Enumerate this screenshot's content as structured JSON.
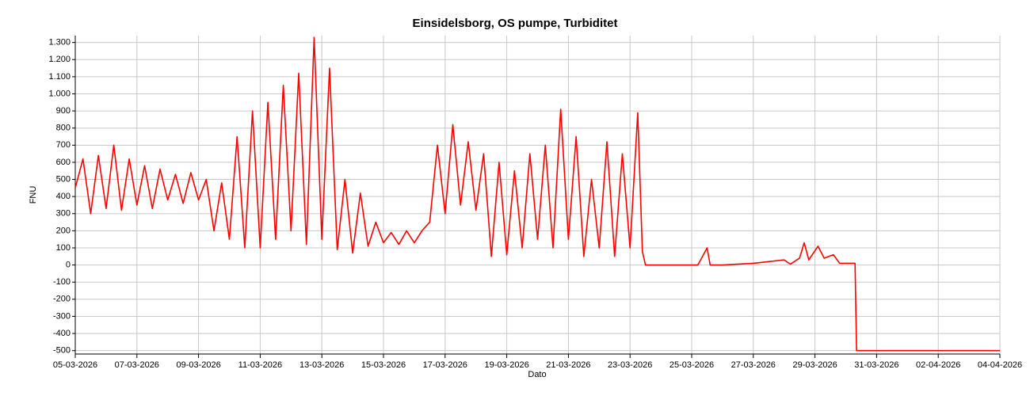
{
  "chart_data": {
    "type": "line",
    "title": "Einsidelsborg, OS pumpe, Turbiditet",
    "x_label": "Dato",
    "y_label": "FNU",
    "color": "#ff0000",
    "grid": true,
    "xlim": [
      0,
      30
    ],
    "ylim": [
      -520,
      1340
    ],
    "xticks": [
      {
        "value": 0,
        "label": "05-03-2026"
      },
      {
        "value": 2,
        "label": "07-03-2026"
      },
      {
        "value": 4,
        "label": "09-03-2026"
      },
      {
        "value": 6,
        "label": "11-03-2026"
      },
      {
        "value": 8,
        "label": "13-03-2026"
      },
      {
        "value": 10,
        "label": "15-03-2026"
      },
      {
        "value": 12,
        "label": "17-03-2026"
      },
      {
        "value": 14,
        "label": "19-03-2026"
      },
      {
        "value": 16,
        "label": "21-03-2026"
      },
      {
        "value": 18,
        "label": "23-03-2026"
      },
      {
        "value": 20,
        "label": "25-03-2026"
      },
      {
        "value": 22,
        "label": "27-03-2026"
      },
      {
        "value": 24,
        "label": "29-03-2026"
      },
      {
        "value": 26,
        "label": "31-03-2026"
      },
      {
        "value": 28,
        "label": "02-04-2026"
      },
      {
        "value": 30,
        "label": "04-04-2026"
      }
    ],
    "yticks": [
      -500,
      -400,
      -300,
      -200,
      -100,
      0,
      100,
      200,
      300,
      400,
      500,
      600,
      700,
      800,
      900,
      {
        "value": 1000,
        "label": "1.000"
      },
      {
        "value": 1100,
        "label": "1.100"
      },
      {
        "value": 1200,
        "label": "1.200"
      },
      {
        "value": 1300,
        "label": "1.300"
      }
    ],
    "x": [
      0,
      0.25,
      0.5,
      0.75,
      1,
      1.25,
      1.5,
      1.75,
      2,
      2.25,
      2.5,
      2.75,
      3,
      3.25,
      3.5,
      3.75,
      4,
      4.25,
      4.5,
      4.75,
      5,
      5.25,
      5.5,
      5.75,
      6,
      6.25,
      6.5,
      6.75,
      7,
      7.25,
      7.5,
      7.75,
      8,
      8.25,
      8.5,
      8.75,
      9,
      9.25,
      9.5,
      9.75,
      10,
      10.25,
      10.5,
      10.75,
      11,
      11.25,
      11.5,
      11.75,
      12,
      12.25,
      12.5,
      12.75,
      13,
      13.25,
      13.5,
      13.75,
      14,
      14.25,
      14.5,
      14.75,
      15,
      15.25,
      15.5,
      15.75,
      16,
      16.25,
      16.5,
      16.75,
      17,
      17.25,
      17.5,
      17.75,
      18,
      18.25,
      18.4,
      18.5,
      19,
      19.5,
      20.2,
      20.5,
      20.6,
      21,
      22,
      22.5,
      23,
      23.2,
      23.5,
      23.65,
      23.8,
      24.1,
      24.3,
      24.6,
      24.8,
      25.3,
      25.35,
      30
    ],
    "values": [
      450,
      620,
      300,
      640,
      330,
      700,
      320,
      620,
      350,
      580,
      330,
      560,
      380,
      530,
      360,
      540,
      380,
      500,
      200,
      480,
      150,
      750,
      100,
      900,
      100,
      950,
      150,
      1050,
      200,
      1120,
      120,
      1330,
      150,
      1150,
      90,
      500,
      70,
      420,
      110,
      250,
      130,
      190,
      120,
      200,
      130,
      200,
      250,
      700,
      300,
      820,
      350,
      720,
      320,
      650,
      50,
      600,
      60,
      550,
      100,
      650,
      150,
      700,
      100,
      910,
      150,
      750,
      50,
      500,
      100,
      720,
      50,
      650,
      100,
      890,
      80,
      0,
      0,
      0,
      0,
      100,
      0,
      0,
      10,
      20,
      30,
      5,
      40,
      130,
      30,
      110,
      40,
      60,
      10,
      10,
      -500,
      -500
    ]
  }
}
